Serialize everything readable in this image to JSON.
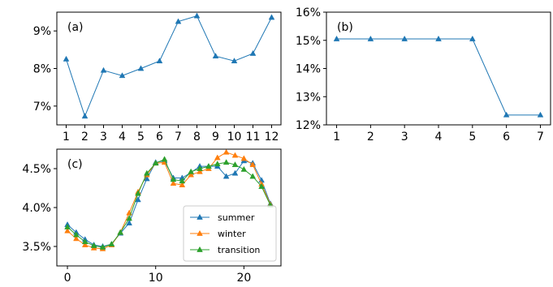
{
  "chart_data": [
    {
      "panel_label": "(a)",
      "type": "line",
      "x": [
        1,
        2,
        3,
        4,
        5,
        6,
        7,
        8,
        9,
        10,
        11,
        12
      ],
      "series": [
        {
          "values": [
            8.25,
            6.73,
            7.95,
            7.81,
            8.0,
            8.2,
            9.25,
            9.4,
            8.33,
            8.2,
            8.4,
            9.36
          ],
          "color": "#1f77b4",
          "marker": "triangle"
        }
      ],
      "xlim": [
        0.5,
        12.5
      ],
      "ylim": [
        6.5,
        9.5
      ],
      "x_ticks": [
        "1",
        "2",
        "3",
        "4",
        "5",
        "6",
        "7",
        "8",
        "9",
        "10",
        "11",
        "12"
      ],
      "y_ticks": [
        7,
        8,
        9
      ],
      "y_tick_labels": [
        "7%",
        "8%",
        "9%"
      ],
      "grid": false
    },
    {
      "panel_label": "(b)",
      "type": "line",
      "x": [
        1,
        2,
        3,
        4,
        5,
        6,
        7
      ],
      "series": [
        {
          "values": [
            15.05,
            15.05,
            15.05,
            15.05,
            15.05,
            12.35,
            12.35
          ],
          "color": "#1f77b4",
          "marker": "triangle"
        }
      ],
      "xlim": [
        0.7,
        7.3
      ],
      "ylim": [
        12,
        16
      ],
      "x_ticks": [
        "1",
        "2",
        "3",
        "4",
        "5",
        "6",
        "7"
      ],
      "y_ticks": [
        12,
        13,
        14,
        15,
        16
      ],
      "y_tick_labels": [
        "12%",
        "13%",
        "14%",
        "15%",
        "16%"
      ],
      "grid": false
    },
    {
      "panel_label": "(c)",
      "type": "line",
      "x": [
        0,
        1,
        2,
        3,
        4,
        5,
        6,
        7,
        8,
        9,
        10,
        11,
        12,
        13,
        14,
        15,
        16,
        17,
        18,
        19,
        20,
        21,
        22,
        23
      ],
      "series": [
        {
          "name": "summer",
          "color": "#1f77b4",
          "marker": "triangle",
          "values": [
            3.78,
            3.68,
            3.59,
            3.52,
            3.5,
            3.53,
            3.67,
            3.8,
            4.1,
            4.37,
            4.58,
            4.6,
            4.38,
            4.38,
            4.45,
            4.53,
            4.53,
            4.53,
            4.4,
            4.44,
            4.6,
            4.57,
            4.35,
            4.05
          ]
        },
        {
          "name": "winter",
          "color": "#ff7f0e",
          "marker": "triangle",
          "values": [
            3.7,
            3.6,
            3.52,
            3.48,
            3.47,
            3.52,
            3.68,
            3.93,
            4.2,
            4.42,
            4.57,
            4.58,
            4.31,
            4.29,
            4.42,
            4.46,
            4.5,
            4.64,
            4.71,
            4.67,
            4.63,
            4.55,
            4.3,
            4.04
          ]
        },
        {
          "name": "transition",
          "color": "#2ca02c",
          "marker": "triangle",
          "values": [
            3.75,
            3.65,
            3.56,
            3.51,
            3.49,
            3.53,
            3.68,
            3.86,
            4.18,
            4.44,
            4.57,
            4.62,
            4.36,
            4.34,
            4.46,
            4.5,
            4.53,
            4.56,
            4.58,
            4.55,
            4.49,
            4.4,
            4.27,
            4.03
          ]
        }
      ],
      "xlim": [
        -1.2,
        24.2
      ],
      "ylim": [
        3.25,
        4.75
      ],
      "x_ticks": [
        "0",
        "10",
        "20"
      ],
      "x_tick_values": [
        0,
        10,
        20
      ],
      "y_ticks": [
        3.5,
        4.0,
        4.5
      ],
      "y_tick_labels": [
        "3.5%",
        "4.0%",
        "4.5%"
      ],
      "legend": "bottom-right",
      "grid": false
    }
  ]
}
